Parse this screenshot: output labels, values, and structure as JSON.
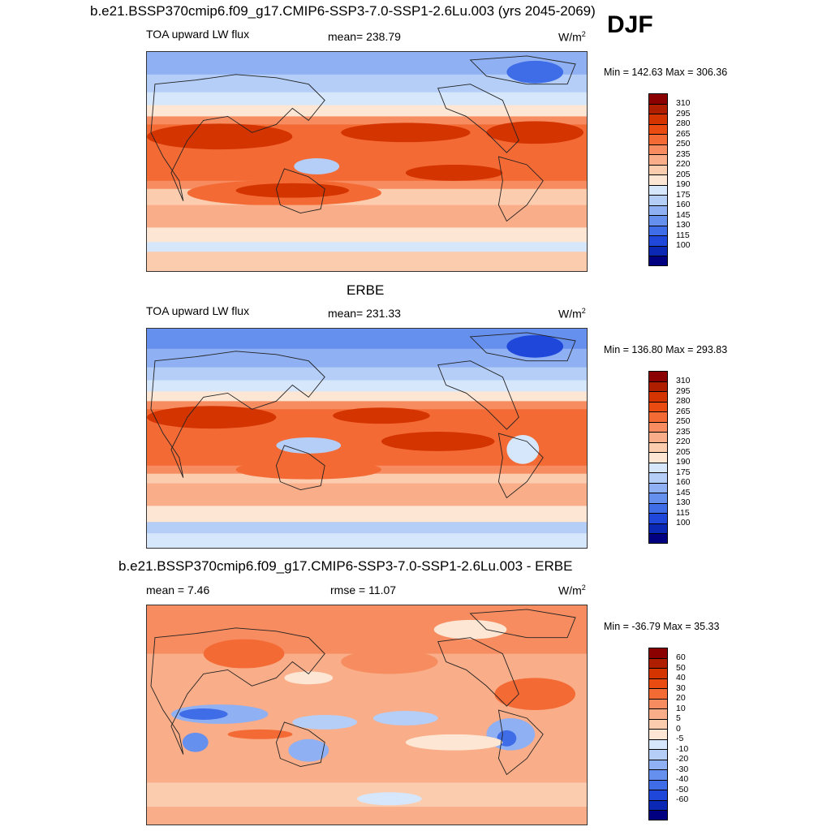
{
  "header": {
    "title": "b.e21.BSSP370cmip6.f09_g17.CMIP6-SSP3-7.0-SSP1-2.6Lu.003 (yrs 2045-2069)",
    "season": "DJF"
  },
  "panels": [
    {
      "id": "model",
      "field_label": "TOA upward LW flux",
      "stat_label": "mean= 238.79",
      "units": "W/m",
      "units_sup": "2",
      "minmax": "Min = 142.63 Max = 306.36"
    },
    {
      "id": "obs",
      "title": "ERBE",
      "field_label": "TOA upward LW flux",
      "stat_label": "mean= 231.33",
      "units": "W/m",
      "units_sup": "2",
      "minmax": "Min = 136.80 Max = 293.83"
    },
    {
      "id": "diff",
      "title": "b.e21.BSSP370cmip6.f09_g17.CMIP6-SSP3-7.0-SSP1-2.6Lu.003 - ERBE",
      "field_label": "mean =   7.46",
      "stat_label": "rmse =  11.07",
      "units": "W/m",
      "units_sup": "2",
      "minmax": "Min = -36.79 Max =  35.33"
    }
  ],
  "colorbars": {
    "flux": {
      "labels": [
        "310",
        "295",
        "280",
        "265",
        "250",
        "235",
        "220",
        "205",
        "190",
        "175",
        "160",
        "145",
        "130",
        "115",
        "100"
      ],
      "colors": [
        "#8b0000",
        "#b01e00",
        "#d43400",
        "#ea4b10",
        "#f46a35",
        "#f78c60",
        "#f9ad88",
        "#fbccae",
        "#fde6d4",
        "#d6e6fb",
        "#b4cef7",
        "#8fb0f2",
        "#6690ee",
        "#3f6de8",
        "#1f48db",
        "#0a28b4",
        "#000080"
      ]
    },
    "diff": {
      "labels": [
        "60",
        "50",
        "40",
        "30",
        "20",
        "10",
        "5",
        "0",
        "-5",
        "-10",
        "-20",
        "-30",
        "-40",
        "-50",
        "-60"
      ],
      "colors": [
        "#8b0000",
        "#b01e00",
        "#d43400",
        "#ea4b10",
        "#f46a35",
        "#f78c60",
        "#f9ad88",
        "#fbccae",
        "#fde6d4",
        "#d6e6fb",
        "#b4cef7",
        "#8fb0f2",
        "#6690ee",
        "#3f6de8",
        "#1f48db",
        "#0a28b4",
        "#000080"
      ]
    }
  }
}
